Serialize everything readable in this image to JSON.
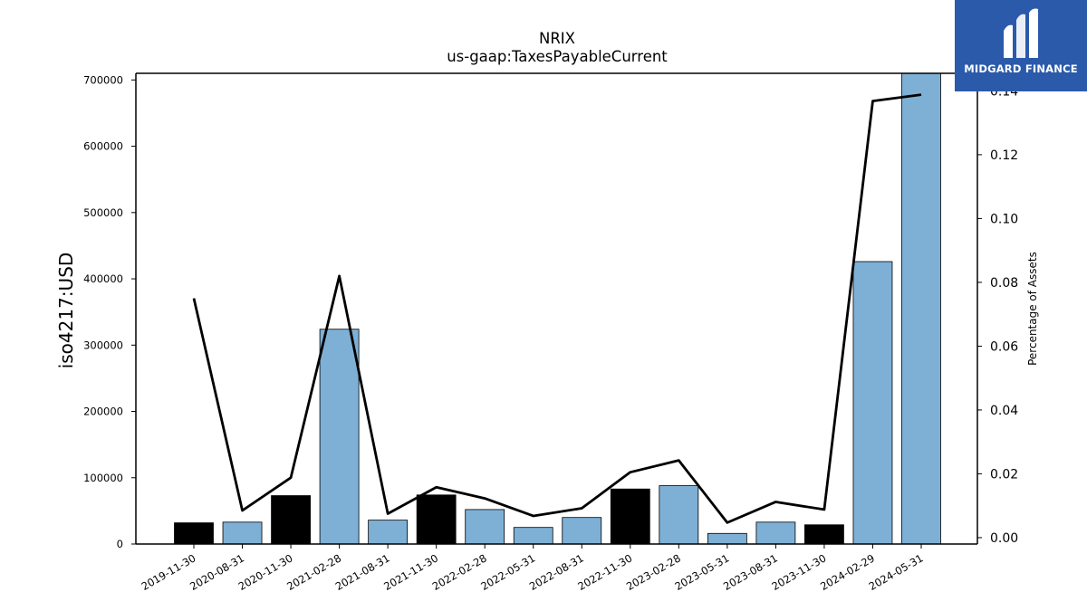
{
  "chart_data": {
    "type": "bar",
    "title": "NRIX",
    "subtitle": "us-gaap:TaxesPayableCurrent",
    "ylabel": "iso4217:USD",
    "y2label": "Percentage of Assets",
    "categories": [
      "2019-11-30",
      "2020-08-31",
      "2020-11-30",
      "2021-02-28",
      "2021-08-31",
      "2021-11-30",
      "2022-02-28",
      "2022-05-31",
      "2022-08-31",
      "2022-11-30",
      "2023-02-28",
      "2023-05-31",
      "2023-08-31",
      "2023-11-30",
      "2024-02-29",
      "2024-05-31"
    ],
    "series": [
      {
        "type": "bar",
        "values": [
          32000,
          33000,
          73000,
          324000,
          36000,
          74000,
          52000,
          25000,
          40000,
          83000,
          88000,
          16000,
          33000,
          29000,
          426000,
          710000
        ],
        "colors": [
          "#000000",
          "#7eb0d5",
          "#000000",
          "#7eb0d5",
          "#7eb0d5",
          "#000000",
          "#7eb0d5",
          "#7eb0d5",
          "#7eb0d5",
          "#000000",
          "#7eb0d5",
          "#7eb0d5",
          "#7eb0d5",
          "#000000",
          "#7eb0d5",
          "#7eb0d5"
        ]
      },
      {
        "type": "line",
        "axis": "right",
        "color": "#000000",
        "values": [
          0.075,
          0.0085,
          0.0188,
          0.082,
          0.0075,
          0.0158,
          0.0123,
          0.0068,
          0.0092,
          0.0205,
          0.0242,
          0.0047,
          0.0112,
          0.0088,
          0.1368,
          0.1388
        ]
      }
    ],
    "ylim": [
      0,
      710000
    ],
    "yticks": [
      0,
      100000,
      200000,
      300000,
      400000,
      500000,
      600000,
      700000
    ],
    "y2lim": [
      -0.002,
      0.1455
    ],
    "y2ticks": [
      "0.00",
      "0.02",
      "0.04",
      "0.06",
      "0.08",
      "0.10",
      "0.12",
      "0.14"
    ],
    "grid": false,
    "legend": "none"
  },
  "logo": {
    "text": "MIDGARD FINANCE",
    "color": "#2b5aab"
  }
}
